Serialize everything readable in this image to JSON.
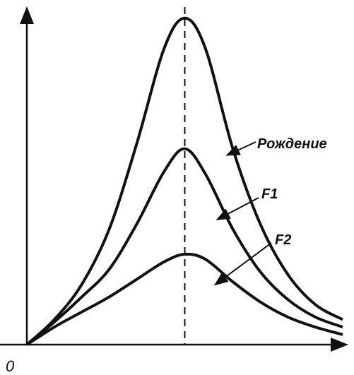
{
  "chart_data": {
    "type": "line",
    "title": "",
    "xlabel": "",
    "ylabel": "",
    "origin_label": "0",
    "peak_marker": "dashed vertical line at the common peak",
    "series": [
      {
        "name": "Рождение",
        "x": [
          0,
          2,
          4,
          6,
          8,
          10,
          11.5,
          13,
          15,
          17,
          19,
          21,
          23
        ],
        "y": [
          0,
          1.0,
          2.4,
          4.6,
          8.0,
          11.8,
          13.0,
          11.8,
          7.8,
          4.8,
          2.8,
          1.6,
          1.0
        ]
      },
      {
        "name": "F1",
        "x": [
          0,
          2,
          4,
          6,
          8,
          10,
          11.5,
          13,
          15,
          17,
          19,
          21,
          23
        ],
        "y": [
          0,
          0.9,
          1.9,
          3.0,
          4.8,
          6.9,
          7.8,
          6.8,
          4.6,
          2.9,
          1.8,
          1.1,
          0.7
        ]
      },
      {
        "name": "F2",
        "x": [
          0,
          2,
          4,
          6,
          8,
          10,
          11.5,
          13,
          15,
          17,
          19,
          21,
          23
        ],
        "y": [
          0,
          0.7,
          1.3,
          1.9,
          2.6,
          3.3,
          3.6,
          3.4,
          2.5,
          1.7,
          1.1,
          0.7,
          0.4
        ]
      }
    ],
    "peak_x": 11.5,
    "xlim": [
      0,
      23
    ],
    "ylim": [
      0,
      13.5
    ],
    "legend": "labels with arrows pointing to curves"
  }
}
